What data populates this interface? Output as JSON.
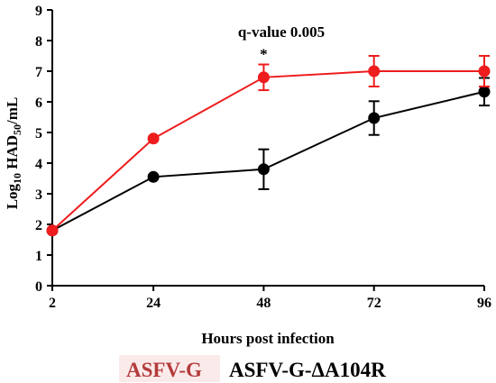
{
  "chart_data": {
    "type": "line",
    "title": "",
    "xlabel": "Hours post infection",
    "ylabel": {
      "prefix": "Log",
      "sub1": "10",
      "mid": " HAD",
      "sub2": "50",
      "suffix": "/mL"
    },
    "x_categories": [
      "2",
      "24",
      "48",
      "72",
      "96"
    ],
    "x_values": [
      2,
      24,
      48,
      72,
      96
    ],
    "xlim": [
      2,
      96
    ],
    "ylim": [
      0,
      9
    ],
    "yticks": [
      "0",
      "1",
      "2",
      "3",
      "4",
      "5",
      "6",
      "7",
      "8",
      "9"
    ],
    "grid": false,
    "legend_placement": "bottom",
    "annotations": [
      {
        "text": "q-value 0.005"
      },
      {
        "text": "*",
        "x": 48
      }
    ],
    "series": [
      {
        "name": "ASFV-G",
        "color": "#ee1c1c",
        "y": [
          1.8,
          4.8,
          6.8,
          7.0,
          7.0
        ],
        "error": [
          0.0,
          0.0,
          0.42,
          0.5,
          0.5
        ]
      },
      {
        "name": "ASFV-G-ΔA104R",
        "color": "#000000",
        "y": [
          1.8,
          3.55,
          3.8,
          5.47,
          6.33
        ],
        "error": [
          0.0,
          0.0,
          0.65,
          0.55,
          0.45
        ]
      }
    ]
  }
}
